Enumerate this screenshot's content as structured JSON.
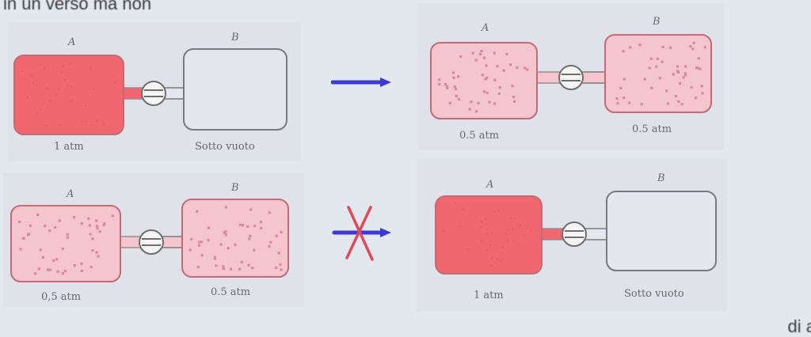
{
  "top_caption": "in un verso ma non",
  "bottom_caption": "di a",
  "colors": {
    "full_gas": "#f0676f",
    "half_gas": "#f5c5cd",
    "dot": "#d88a97",
    "outline": "#7a7a7a",
    "arrow": "#3e3ad0",
    "cross": "#e0485c"
  },
  "panels": [
    {
      "id": "top-left",
      "label_a": "A",
      "label_b": "B",
      "pressure_a": "1 atm",
      "pressure_b": "Sotto vuoto",
      "state_a": "full",
      "state_b": "empty"
    },
    {
      "id": "top-right",
      "label_a": "A",
      "label_b": "B",
      "pressure_a": "0.5 atm",
      "pressure_b": "0.5 atm",
      "state_a": "half",
      "state_b": "half"
    },
    {
      "id": "bottom-left",
      "label_a": "A",
      "label_b": "B",
      "pressure_a": "0,5 atm",
      "pressure_b": "0.5 atm",
      "state_a": "half",
      "state_b": "half"
    },
    {
      "id": "bottom-right",
      "label_a": "A",
      "label_b": "B",
      "pressure_a": "1 atm",
      "pressure_b": "Sotto vuoto",
      "state_a": "full",
      "state_b": "empty"
    }
  ],
  "arrows": [
    {
      "id": "forward",
      "crossed": false
    },
    {
      "id": "reverse",
      "crossed": true
    }
  ]
}
